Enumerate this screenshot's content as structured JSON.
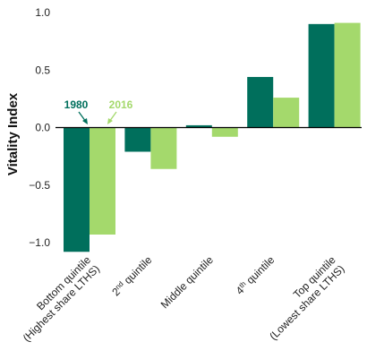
{
  "chart_data": {
    "type": "bar",
    "ylabel": "Vitality Index",
    "ylim": [
      -1.0,
      1.0
    ],
    "yticks": [
      "1.0",
      "0.5",
      "0.0",
      "-0.5",
      "-1.0"
    ],
    "ytick_values": [
      1.0,
      0.5,
      0.0,
      -0.5,
      -1.0
    ],
    "categories": [
      [
        "Bottom quintile",
        "(Highest share LTHS)"
      ],
      [
        "2nd quintile"
      ],
      [
        "Middle quintile"
      ],
      [
        "4th quintile"
      ],
      [
        "Top quintile",
        "(Lowest share LTHS)"
      ]
    ],
    "series": [
      {
        "name": "1980",
        "color": "#006f5c",
        "values": [
          -1.08,
          -0.21,
          0.02,
          0.44,
          0.9
        ]
      },
      {
        "name": "2016",
        "color": "#a4d96c",
        "values": [
          -0.93,
          -0.36,
          -0.08,
          0.26,
          0.91
        ]
      }
    ],
    "legend": "inline-annotation-left",
    "grid": false
  }
}
